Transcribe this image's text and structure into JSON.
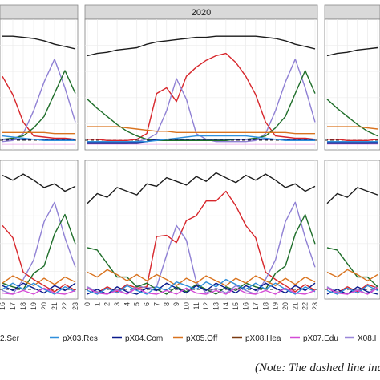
{
  "figure": {
    "note": "(Note: The dashed line indica",
    "strip_label_center": "2020"
  },
  "chart_data": {
    "type": "line",
    "facets": [
      {
        "row": 1,
        "col": 1,
        "label": ""
      },
      {
        "row": 1,
        "col": 2,
        "label": "2020"
      },
      {
        "row": 1,
        "col": 3,
        "label": ""
      },
      {
        "row": 2,
        "col": 1,
        "label": ""
      },
      {
        "row": 2,
        "col": 2,
        "label": ""
      },
      {
        "row": 2,
        "col": 3,
        "label": ""
      }
    ],
    "x_ticks": [
      "0",
      "1",
      "2",
      "3",
      "4",
      "5",
      "6",
      "7",
      "8",
      "9",
      "10",
      "11",
      "12",
      "13",
      "14",
      "15",
      "16",
      "17",
      "18",
      "19",
      "20",
      "21",
      "22",
      "23"
    ],
    "x_ticks_left_panel": [
      "16",
      "17",
      "18",
      "19",
      "20",
      "21",
      "22",
      "23"
    ],
    "legend": [
      {
        "label": "2.Ser",
        "color": "#1b1b1b"
      },
      {
        "label": "pX03.Res",
        "color": "#2f8fdc"
      },
      {
        "label": "pX04.Com",
        "color": "#0a1a8c"
      },
      {
        "label": "pX05.Off",
        "color": "#d9731f"
      },
      {
        "label": "pX08.Hea",
        "color": "#7a3a10"
      },
      {
        "label": "pX07.Edu",
        "color": "#d44bd6"
      },
      {
        "label": "X08.I",
        "color": "#9a86d8"
      }
    ],
    "threshold_line": "dashed",
    "series": [
      {
        "name": "top-black",
        "color": "#1b1b1b",
        "values": [
          0.78,
          0.8,
          0.81,
          0.83,
          0.84,
          0.85,
          0.88,
          0.9,
          0.91,
          0.92,
          0.93,
          0.94,
          0.94,
          0.95,
          0.95,
          0.95,
          0.95,
          0.95,
          0.94,
          0.93,
          0.91,
          0.88,
          0.86,
          0.84
        ]
      },
      {
        "name": "red",
        "color": "#d7262b",
        "values": [
          0.05,
          0.05,
          0.04,
          0.04,
          0.04,
          0.05,
          0.1,
          0.45,
          0.5,
          0.38,
          0.6,
          0.68,
          0.74,
          0.78,
          0.8,
          0.72,
          0.6,
          0.44,
          0.2,
          0.08,
          0.07,
          0.06,
          0.06,
          0.05
        ]
      },
      {
        "name": "purple-blue",
        "color": "#8f80d4",
        "values": [
          0.02,
          0.02,
          0.02,
          0.02,
          0.02,
          0.03,
          0.05,
          0.1,
          0.3,
          0.58,
          0.4,
          0.1,
          0.05,
          0.03,
          0.03,
          0.03,
          0.03,
          0.04,
          0.1,
          0.3,
          0.55,
          0.75,
          0.5,
          0.2
        ]
      },
      {
        "name": "green",
        "color": "#1f6e2a",
        "values": [
          0.4,
          0.32,
          0.25,
          0.18,
          0.12,
          0.08,
          0.05,
          0.04,
          0.04,
          0.04,
          0.04,
          0.04,
          0.04,
          0.04,
          0.04,
          0.05,
          0.05,
          0.06,
          0.08,
          0.15,
          0.25,
          0.45,
          0.65,
          0.45
        ]
      },
      {
        "name": "orange",
        "color": "#d9731f",
        "values": [
          0.16,
          0.16,
          0.16,
          0.16,
          0.15,
          0.14,
          0.13,
          0.12,
          0.12,
          0.11,
          0.11,
          0.11,
          0.11,
          0.11,
          0.11,
          0.11,
          0.11,
          0.11,
          0.11,
          0.11,
          0.11,
          0.1,
          0.1,
          0.1
        ]
      },
      {
        "name": "navy",
        "color": "#0a1a8c",
        "values": [
          0.02,
          0.02,
          0.02,
          0.02,
          0.02,
          0.02,
          0.03,
          0.05,
          0.05,
          0.05,
          0.05,
          0.05,
          0.05,
          0.05,
          0.05,
          0.05,
          0.05,
          0.05,
          0.05,
          0.05,
          0.05,
          0.05,
          0.05,
          0.05
        ]
      },
      {
        "name": "light-blue",
        "color": "#2f8fdc",
        "values": [
          0.03,
          0.03,
          0.03,
          0.03,
          0.03,
          0.03,
          0.03,
          0.04,
          0.05,
          0.06,
          0.07,
          0.08,
          0.08,
          0.08,
          0.08,
          0.08,
          0.08,
          0.07,
          0.06,
          0.05,
          0.04,
          0.04,
          0.04,
          0.04
        ]
      },
      {
        "name": "magenta",
        "color": "#d44bd6",
        "values": [
          0.01,
          0.01,
          0.01,
          0.01,
          0.01,
          0.01,
          0.01,
          0.01,
          0.01,
          0.01,
          0.01,
          0.01,
          0.01,
          0.01,
          0.01,
          0.01,
          0.01,
          0.01,
          0.01,
          0.01,
          0.01,
          0.01,
          0.01,
          0.01
        ]
      }
    ]
  }
}
